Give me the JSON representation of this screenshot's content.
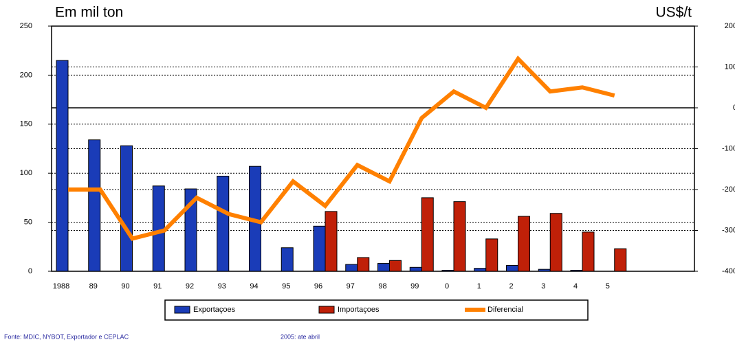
{
  "chart_data": {
    "type": "bar-line",
    "y_label": "Em mil ton",
    "y2_label": "US$/t",
    "categories": [
      "1988",
      "89",
      "90",
      "91",
      "92",
      "93",
      "94",
      "95",
      "96",
      "97",
      "98",
      "99",
      "0",
      "1",
      "2",
      "3",
      "4",
      "5",
      null,
      null
    ],
    "series": [
      {
        "name": "Exportaçoes",
        "color": "#1a3cb8",
        "type": "bar",
        "values": [
          215,
          134,
          128,
          87,
          84,
          97,
          107,
          24,
          46,
          7,
          8,
          4,
          1,
          3,
          6,
          2,
          1,
          0,
          null,
          null
        ]
      },
      {
        "name": "Importaçoes",
        "color": "#c02008",
        "type": "bar",
        "values": [
          null,
          null,
          null,
          null,
          null,
          null,
          null,
          null,
          61,
          14,
          11,
          75,
          71,
          33,
          56,
          59,
          40,
          23,
          null,
          null
        ]
      },
      {
        "name": "Diferencial",
        "color": "#ff8000",
        "type": "line",
        "axis": "y2",
        "values": [
          -200,
          -200,
          -320,
          -300,
          -220,
          -260,
          -280,
          -180,
          -240,
          -140,
          -180,
          -25,
          40,
          0,
          120,
          40,
          50,
          30,
          null,
          null
        ]
      }
    ],
    "ylim": [
      0,
      250
    ],
    "yticks": [
      0,
      50,
      100,
      150,
      200,
      250
    ],
    "y2lim": [
      -400,
      200
    ],
    "y2ticks": [
      -400,
      -300,
      -200,
      -100,
      0,
      100,
      200
    ],
    "grid": true,
    "notes": [
      "Fonte: MDIC, NYBOT, Exportador e CEPLAC",
      "2005: ate abril"
    ]
  }
}
